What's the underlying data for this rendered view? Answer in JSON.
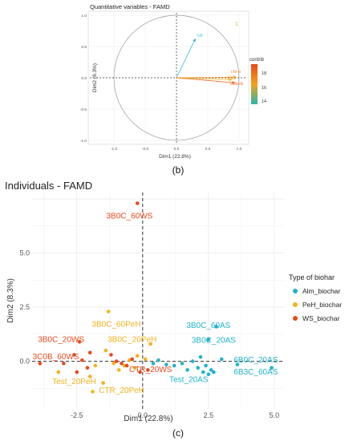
{
  "panel_b": {
    "label": "(b)"
  },
  "panel_c": {
    "label": "(c)"
  },
  "chart_data": [
    {
      "type": "scatter",
      "title": "Quantitative variables - FAMD",
      "xlabel": "Dim1 (22.8%)",
      "ylabel": "Dim2 (8.3%)",
      "xlim": [
        -1.0,
        1.0
      ],
      "ylim": [
        -1.0,
        1.0
      ],
      "x_ticks": [
        "-1.0",
        "-0.5",
        "0.0",
        "0.5",
        "1.0"
      ],
      "y_ticks": [
        "1.0",
        "0.5",
        "0.0",
        "-0.5",
        "-1.0"
      ],
      "grid": true,
      "legend": {
        "title": "contrib",
        "position": "right",
        "ticks": [
          "18",
          "16",
          "14"
        ],
        "colors": [
          "#e8471b",
          "#f2a21e",
          "#2bb7a7"
        ]
      },
      "variables": [
        {
          "label": "car",
          "x": 0.3,
          "y": 0.62,
          "color": "#36b8d6"
        },
        {
          "label": "chl-a",
          "x": 0.95,
          "y": 0.01,
          "color": "#f08a24"
        },
        {
          "label": "chl-b",
          "x": 0.88,
          "y": -0.03,
          "color": "#f2b021"
        },
        {
          "label": "chla+b",
          "x": 0.93,
          "y": -0.08,
          "color": "#f06a1e"
        }
      ],
      "corner_mark": "1"
    },
    {
      "type": "scatter",
      "title": "Individuals - FAMD",
      "xlabel": "Dim1 (22.8%)",
      "ylabel": "Dim2 (8.3%)",
      "xlim": [
        -4.2,
        5.4
      ],
      "ylim": [
        -2.2,
        7.8
      ],
      "x_ticks": [
        -2.5,
        0.0,
        2.5,
        5.0
      ],
      "y_ticks": [
        0.0,
        2.5,
        5.0
      ],
      "grid": true,
      "legend": {
        "title": "Type of biohar",
        "position": "right"
      },
      "series": [
        {
          "name": "Alm_biochar",
          "color": "#1fb3c8",
          "points": [
            [
              0.4,
              -0.1
            ],
            [
              0.6,
              0.05
            ],
            [
              0.9,
              -0.15
            ],
            [
              1.2,
              -0.2
            ],
            [
              1.5,
              -0.1
            ],
            [
              1.7,
              -0.4
            ],
            [
              1.9,
              0.0
            ],
            [
              2.1,
              -0.3
            ],
            [
              2.2,
              0.2
            ],
            [
              2.3,
              -0.5
            ],
            [
              2.4,
              -0.2
            ],
            [
              2.5,
              -0.6
            ],
            [
              2.6,
              -0.4
            ],
            [
              2.7,
              -0.5
            ],
            [
              3.0,
              0.1
            ],
            [
              3.6,
              -0.15
            ],
            [
              4.9,
              -0.3
            ],
            [
              2.5,
              1.0
            ],
            [
              2.8,
              1.6
            ]
          ],
          "labels": [
            {
              "text": "3B0C_60AS",
              "x": 2.5,
              "y": 1.55
            },
            {
              "text": "3B0C_20AS",
              "x": 2.7,
              "y": 0.85
            },
            {
              "text": "6B0C_20AS",
              "x": 4.3,
              "y": -0.05
            },
            {
              "text": "6B3C_60AS",
              "x": 4.3,
              "y": -0.6
            },
            {
              "text": "Test_20AS",
              "x": 1.75,
              "y": -0.95
            }
          ]
        },
        {
          "name": "PeH_biochar",
          "color": "#f2b21b",
          "points": [
            [
              -1.3,
              2.3
            ],
            [
              -1.4,
              0.5
            ],
            [
              -3.2,
              -0.5
            ],
            [
              -2.0,
              -0.7
            ],
            [
              -1.8,
              -0.2
            ],
            [
              -1.5,
              -1.0
            ],
            [
              -1.1,
              -0.1
            ],
            [
              -0.9,
              -0.4
            ],
            [
              -0.7,
              -0.2
            ],
            [
              -0.5,
              0.05
            ],
            [
              -0.3,
              -0.3
            ],
            [
              -0.2,
              0.25
            ],
            [
              0.1,
              0.1
            ],
            [
              0.3,
              0.8
            ],
            [
              -1.9,
              -1.4
            ]
          ],
          "labels": [
            {
              "text": "3B0C_60PeH",
              "x": -1.0,
              "y": 1.6
            },
            {
              "text": "3B0C_20PeH",
              "x": -0.4,
              "y": 0.9
            },
            {
              "text": "Test_20PeH",
              "x": -2.6,
              "y": -1.05
            },
            {
              "text": "CTR_20PeH",
              "x": -0.8,
              "y": -1.45
            }
          ]
        },
        {
          "name": "WS_biochar",
          "color": "#e8491d",
          "points": [
            [
              -0.2,
              7.3
            ],
            [
              -3.9,
              -0.1
            ],
            [
              -3.0,
              -0.1
            ],
            [
              -2.6,
              0.3
            ],
            [
              -2.3,
              0.05
            ],
            [
              -2.5,
              -0.5
            ],
            [
              -2.1,
              -0.3
            ],
            [
              -1.2,
              0.3
            ],
            [
              -1.0,
              0.0
            ],
            [
              -0.8,
              -0.1
            ],
            [
              -0.6,
              -0.2
            ],
            [
              -0.4,
              0.1
            ],
            [
              -0.1,
              -0.5
            ],
            [
              0.2,
              -0.4
            ],
            [
              -2.4,
              0.9
            ],
            [
              -2.0,
              0.4
            ]
          ],
          "labels": [
            {
              "text": "3B0C_60WS",
              "x": -0.5,
              "y": 6.6
            },
            {
              "text": "3B0C_20WS",
              "x": -3.1,
              "y": 0.9
            },
            {
              "text": "3C0B_60WS",
              "x": -3.3,
              "y": 0.1
            },
            {
              "text": "CTR_20WS",
              "x": 0.3,
              "y": -0.5
            }
          ]
        }
      ]
    }
  ]
}
